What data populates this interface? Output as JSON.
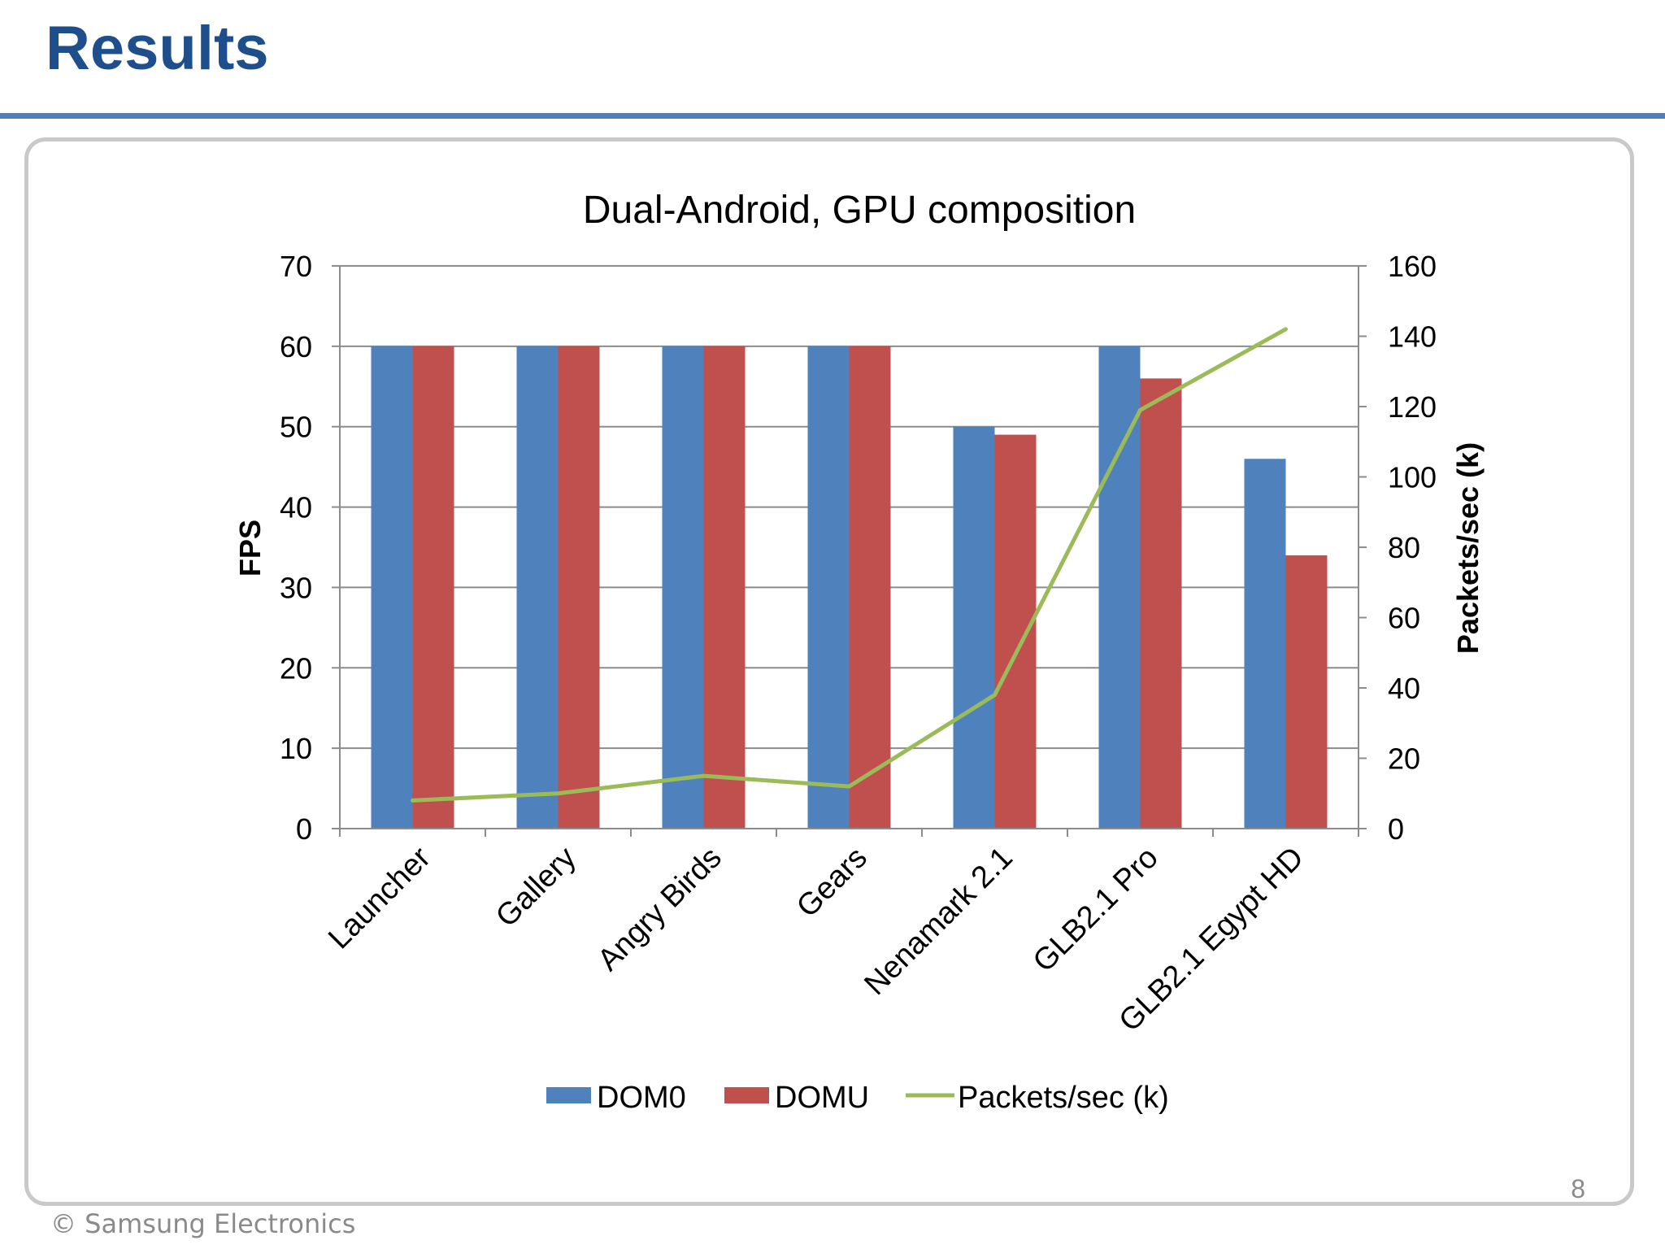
{
  "slide": {
    "title": "Results",
    "page_number": "8",
    "footer": "© Samsung Electronics"
  },
  "colors": {
    "title": "#1f4e8c",
    "rule": "#4f7fba",
    "dom0": "#4f81bd",
    "domu": "#c0504d",
    "packets": "#9bbb59"
  },
  "chart_data": {
    "type": "bar",
    "title": "Dual-Android, GPU composition",
    "categories": [
      "Launcher",
      "Gallery",
      "Angry Birds",
      "Gears",
      "Nenamark 2.1",
      "GLB2.1 Pro",
      "GLB2.1 Egypt HD"
    ],
    "series": [
      {
        "name": "DOM0",
        "type": "bar",
        "axis": "left",
        "color": "#4f81bd",
        "values": [
          60,
          60,
          60,
          60,
          50,
          60,
          46
        ]
      },
      {
        "name": "DOMU",
        "type": "bar",
        "axis": "left",
        "color": "#c0504d",
        "values": [
          60,
          60,
          60,
          60,
          49,
          56,
          34
        ]
      },
      {
        "name": "Packets/sec (k)",
        "type": "line",
        "axis": "right",
        "color": "#9bbb59",
        "values": [
          8,
          10,
          15,
          12,
          38,
          119,
          142
        ]
      }
    ],
    "ylabel": "FPS",
    "ylim": [
      0,
      70
    ],
    "yticks": [
      "0",
      "10",
      "20",
      "30",
      "40",
      "50",
      "60",
      "70"
    ],
    "y2label": "Packets/sec (k)",
    "y2lim": [
      0,
      160
    ],
    "y2ticks": [
      "0",
      "20",
      "40",
      "60",
      "80",
      "100",
      "120",
      "140",
      "160"
    ],
    "grid": true,
    "legend": "bottom"
  }
}
